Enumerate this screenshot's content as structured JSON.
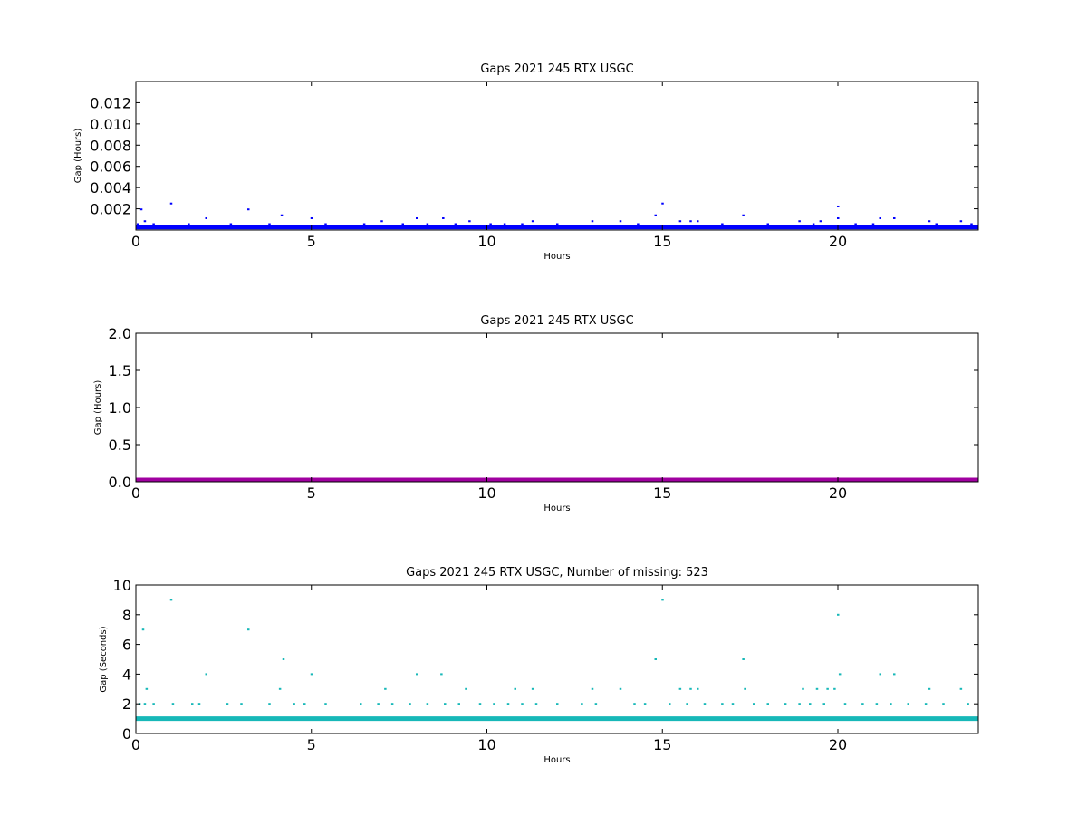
{
  "chart_data": [
    {
      "type": "scatter",
      "title": "Gaps 2021 245 RTX  USGC",
      "xlabel": "Hours",
      "ylabel": "Gap (Hours)",
      "xlim": [
        0,
        24
      ],
      "ylim": [
        0,
        0.014
      ],
      "xticks": [
        0,
        5,
        10,
        15,
        20
      ],
      "yticks": [
        0.002,
        0.004,
        0.006,
        0.008,
        0.01,
        0.012
      ],
      "ytick_labels": [
        "0.002",
        "0.004",
        "0.006",
        "0.008",
        "0.010",
        "0.012"
      ],
      "grid": false,
      "color": "#0000ff",
      "baseline": {
        "y": 0.000278,
        "x_range": [
          0,
          24
        ]
      },
      "series": [
        {
          "x": [
            0.05,
            0.15,
            0.25,
            1.0,
            2.0,
            3.2,
            4.15,
            5.0,
            7.0,
            8.0,
            8.75,
            9.5,
            10.5,
            11.3,
            13.0,
            14.8,
            15.0,
            15.5,
            16.0,
            17.3,
            18.9,
            19.5,
            20.0,
            20.0,
            21.2,
            21.6,
            22.6,
            23.5,
            0.5,
            1.5,
            2.7,
            3.8,
            5.4,
            6.5,
            7.6,
            8.3,
            9.1,
            10.1,
            11.0,
            12.0,
            13.8,
            14.3,
            15.8,
            16.7,
            18.0,
            19.3,
            20.5,
            21.0,
            22.8,
            23.8
          ],
          "y": [
            0.000556,
            0.001944,
            0.000833,
            0.0025,
            0.001111,
            0.001944,
            0.001389,
            0.001111,
            0.000833,
            0.001111,
            0.001111,
            0.000833,
            0.000556,
            0.000833,
            0.000833,
            0.001389,
            0.0025,
            0.000833,
            0.000833,
            0.001389,
            0.000833,
            0.000833,
            0.002222,
            0.001111,
            0.001111,
            0.001111,
            0.000833,
            0.000833,
            0.000556,
            0.000556,
            0.000556,
            0.000556,
            0.000556,
            0.000556,
            0.000556,
            0.000556,
            0.000556,
            0.000556,
            0.000556,
            0.000556,
            0.000833,
            0.000556,
            0.000833,
            0.000556,
            0.000556,
            0.000556,
            0.000556,
            0.000556,
            0.000556,
            0.000556
          ]
        }
      ]
    },
    {
      "type": "scatter",
      "title": "Gaps 2021 245 RTX  USGC",
      "xlabel": "Hours",
      "ylabel": "Gap (Hours)",
      "xlim": [
        0,
        24
      ],
      "ylim": [
        0,
        2.0
      ],
      "xticks": [
        0,
        5,
        10,
        15,
        20
      ],
      "yticks": [
        0.0,
        0.5,
        1.0,
        1.5,
        2.0
      ],
      "ytick_labels": [
        "0.0",
        "0.5",
        "1.0",
        "1.5",
        "2.0"
      ],
      "grid": false,
      "color": "#a000a0",
      "baseline": {
        "y": 0.000278,
        "x_range": [
          0,
          24
        ]
      },
      "series": []
    },
    {
      "type": "scatter",
      "title": "Gaps 2021 245 RTX  USGC, Number of missing: 523",
      "xlabel": "Hours",
      "ylabel": "Gap (Seconds)",
      "xlim": [
        0,
        24
      ],
      "ylim": [
        0,
        10
      ],
      "xticks": [
        0,
        5,
        10,
        15,
        20
      ],
      "yticks": [
        0,
        2,
        4,
        6,
        8,
        10
      ],
      "ytick_labels": [
        "0",
        "2",
        "4",
        "6",
        "8",
        "10"
      ],
      "grid": false,
      "color": "#17b8b8",
      "baseline": {
        "y": 1,
        "x_range": [
          0,
          24
        ]
      },
      "series": [
        {
          "x": [
            0.1,
            0.2,
            0.25,
            0.3,
            1.0,
            1.05,
            2.0,
            3.2,
            4.1,
            4.2,
            5.0,
            7.1,
            8.0,
            8.7,
            9.4,
            10.8,
            11.3,
            13.0,
            13.8,
            14.8,
            15.0,
            15.5,
            15.8,
            16.0,
            17.3,
            17.35,
            19.0,
            19.4,
            19.7,
            19.9,
            20.0,
            20.05,
            21.2,
            21.6,
            22.6,
            23.5,
            0.5,
            1.6,
            1.8,
            2.6,
            3.0,
            3.8,
            4.5,
            4.8,
            5.4,
            6.4,
            6.9,
            7.3,
            7.8,
            8.3,
            8.8,
            9.2,
            9.8,
            10.2,
            10.6,
            11.0,
            11.4,
            12.0,
            12.7,
            13.1,
            14.2,
            14.5,
            15.2,
            15.7,
            16.2,
            16.7,
            17.0,
            17.6,
            18.0,
            18.5,
            18.9,
            19.2,
            19.6,
            20.2,
            20.7,
            21.1,
            21.5,
            22.0,
            22.5,
            23.0,
            23.7
          ],
          "y": [
            2,
            7,
            2,
            3,
            9,
            2,
            4,
            7,
            3,
            5,
            4,
            3,
            4,
            4,
            3,
            3,
            3,
            3,
            3,
            5,
            9,
            3,
            3,
            3,
            5,
            3,
            3,
            3,
            3,
            3,
            8,
            4,
            4,
            4,
            3,
            3,
            2,
            2,
            2,
            2,
            2,
            2,
            2,
            2,
            2,
            2,
            2,
            2,
            2,
            2,
            2,
            2,
            2,
            2,
            2,
            2,
            2,
            2,
            2,
            2,
            2,
            2,
            2,
            2,
            2,
            2,
            2,
            2,
            2,
            2,
            2,
            2,
            2,
            2,
            2,
            2,
            2,
            2,
            2,
            2,
            2
          ]
        }
      ]
    }
  ]
}
